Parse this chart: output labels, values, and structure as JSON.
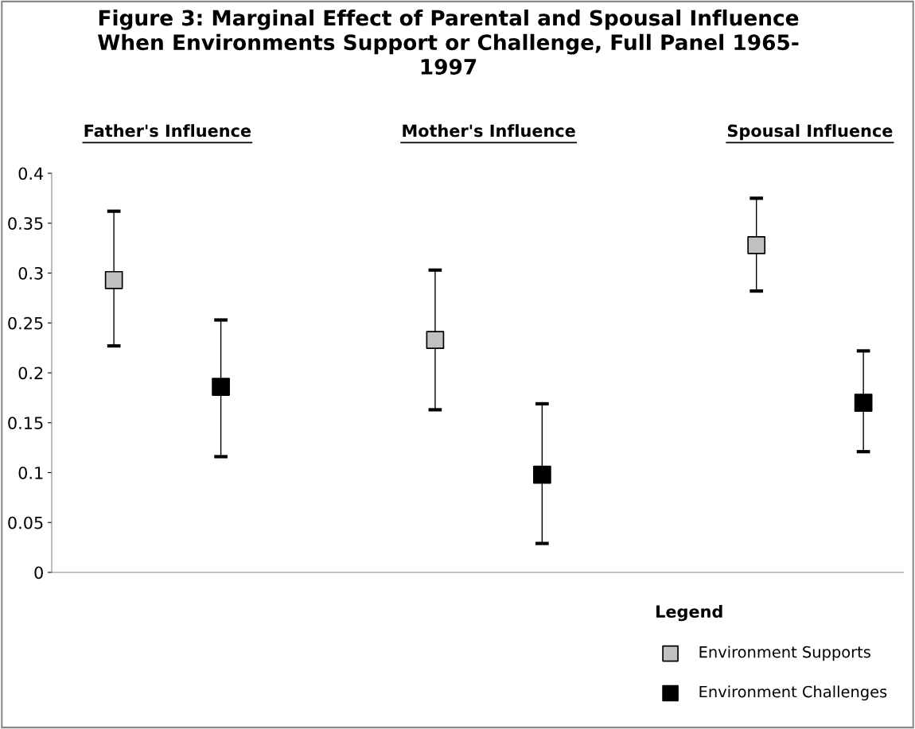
{
  "chart_data": {
    "type": "scatter",
    "title": "Figure 3: Marginal Effect of Parental and Spousal Influence\nWhen Environments Support or Challenge, Full Panel 1965-\n1997",
    "categories": [
      "Father's Influence",
      "Mother's Influence",
      "Spousal Influence"
    ],
    "series": [
      {
        "name": "Environment Supports",
        "color": "#c0c0c0",
        "values": [
          0.293,
          0.233,
          0.328
        ],
        "errors": [
          [
            0.227,
            0.362
          ],
          [
            0.163,
            0.303
          ],
          [
            0.282,
            0.375
          ]
        ]
      },
      {
        "name": "Environment Challenges",
        "color": "#000000",
        "values": [
          0.186,
          0.098,
          0.17
        ],
        "errors": [
          [
            0.116,
            0.253
          ],
          [
            0.029,
            0.169
          ],
          [
            0.121,
            0.222
          ]
        ]
      }
    ],
    "ylim": [
      0,
      0.4
    ],
    "yticks": [
      0,
      0.05,
      0.1,
      0.15,
      0.2,
      0.25,
      0.3,
      0.35,
      0.4
    ],
    "legend": "bottom right",
    "legend_title": "Legend",
    "marker": "square",
    "grid": false
  }
}
